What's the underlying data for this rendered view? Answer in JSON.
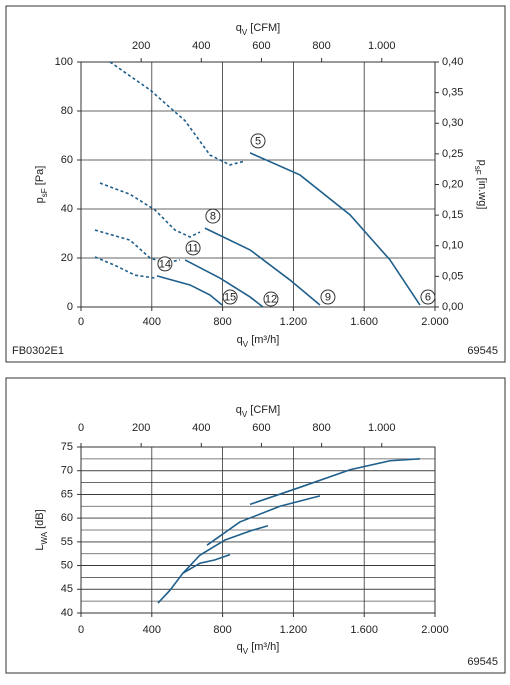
{
  "chart_data": [
    {
      "type": "line",
      "x_label": {
        "text": "q",
        "sub": "V",
        "unit": " [m³/h]"
      },
      "x2_label": {
        "text": "q",
        "sub": "V",
        "unit": " [CFM]"
      },
      "y_label": {
        "text": "p",
        "sub": "sF",
        "unit": " [Pa]"
      },
      "y2_label": {
        "text": "p",
        "sub": "sF",
        "unit": " [in.wg]"
      },
      "code_left": "FB0302E1",
      "code_right": "69545",
      "xlim": [
        0,
        2000
      ],
      "xticks": [
        0,
        400,
        800,
        {
          "value": 1200,
          "label": "1.200"
        },
        {
          "value": 1600,
          "label": "1.600"
        },
        {
          "value": 2000,
          "label": "2.000"
        }
      ],
      "x2lim": [
        0,
        1177
      ],
      "x2ticks": [
        200,
        400,
        600,
        800,
        {
          "value": 1000,
          "label": "1.000"
        }
      ],
      "ylim": [
        0,
        100
      ],
      "yticks": [
        0,
        20,
        40,
        60,
        80,
        100
      ],
      "y2lim": [
        0,
        0.4
      ],
      "y2ticks": [
        {
          "value": 0,
          "label": "0,00"
        },
        {
          "value": 0.05,
          "label": "0,05"
        },
        {
          "value": 0.1,
          "label": "0,10"
        },
        {
          "value": 0.15,
          "label": "0,15"
        },
        {
          "value": 0.2,
          "label": "0,20"
        },
        {
          "value": 0.25,
          "label": "0,25"
        },
        {
          "value": 0.3,
          "label": "0,30"
        },
        {
          "value": 0.35,
          "label": "0,35"
        },
        {
          "value": 0.4,
          "label": "0,40"
        }
      ],
      "grid": true,
      "series": [
        {
          "style": "dashed",
          "color": "#1f5f8b",
          "x": [
            164,
            390,
            588,
            729,
            842,
            927
          ],
          "values": [
            100,
            88.6,
            76,
            62,
            58,
            59.6
          ]
        },
        {
          "style": "solid",
          "color": "#1f5f8b",
          "x": [
            955,
            1237,
            1520,
            1746,
            1915
          ],
          "values": [
            62.9,
            53.9,
            37.6,
            19.2,
            0.8
          ]
        },
        {
          "style": "dashed",
          "color": "#1f5f8b",
          "x": [
            107,
            277,
            418,
            531,
            616,
            672
          ],
          "values": [
            50.6,
            46,
            39.6,
            31.4,
            28.6,
            30.6
          ]
        },
        {
          "style": "solid",
          "color": "#1f5f8b",
          "x": [
            700,
            955,
            1181,
            1350
          ],
          "values": [
            32.2,
            23.3,
            11,
            0.8
          ]
        },
        {
          "style": "dashed",
          "color": "#1f5f8b",
          "x": [
            79,
            277,
            390,
            475,
            559
          ],
          "values": [
            31.4,
            27.3,
            20,
            18,
            19.2
          ]
        },
        {
          "style": "solid",
          "color": "#1f5f8b",
          "x": [
            588,
            785,
            955,
            1028
          ],
          "values": [
            19.2,
            11.8,
            4.1,
            0
          ]
        },
        {
          "style": "dashed",
          "color": "#1f5f8b",
          "x": [
            79,
            192,
            305,
            418
          ],
          "values": [
            20.4,
            17,
            13,
            11.8
          ]
        },
        {
          "style": "solid",
          "color": "#1f5f8b",
          "x": [
            429,
            616,
            729,
            797
          ],
          "values": [
            12.7,
            9,
            4.9,
            0.8
          ]
        }
      ],
      "annotations": [
        {
          "text": "5",
          "series": 1,
          "at": "start"
        },
        {
          "text": "6",
          "series": 1,
          "at": "end"
        },
        {
          "text": "8",
          "series": 3,
          "at": "start"
        },
        {
          "text": "9",
          "series": 3,
          "at": "end"
        },
        {
          "text": "11",
          "series": 5,
          "at": "start"
        },
        {
          "text": "12",
          "series": 5,
          "at": "end"
        },
        {
          "text": "14",
          "series": 7,
          "at": "start"
        },
        {
          "text": "15",
          "series": 7,
          "at": "end"
        }
      ]
    },
    {
      "type": "line",
      "x_label": {
        "text": "q",
        "sub": "V",
        "unit": " [m³/h]"
      },
      "x2_label": {
        "text": "q",
        "sub": "V",
        "unit": " [CFM]"
      },
      "y_label": {
        "text": "L",
        "sub": "WA",
        "unit": " [dB]"
      },
      "code_right": "69545",
      "xlim": [
        0,
        2000
      ],
      "xticks": [
        0,
        400,
        800,
        {
          "value": 1200,
          "label": "1.200"
        },
        {
          "value": 1600,
          "label": "1.600"
        },
        {
          "value": 2000,
          "label": "2.000"
        }
      ],
      "x2lim": [
        0,
        1177
      ],
      "x2ticks": [
        0,
        200,
        400,
        600,
        800,
        {
          "value": 1000,
          "label": "1.000"
        }
      ],
      "ylim": [
        40,
        75
      ],
      "yticks": [
        40,
        45,
        50,
        55,
        60,
        65,
        70,
        75
      ],
      "grid": true,
      "minor_grid_step": 2.5,
      "series": [
        {
          "style": "solid",
          "color": "#1f5f8b",
          "x": [
            435,
            503,
            576,
            672,
            757,
            842
          ],
          "values": [
            42.1,
            44.8,
            48.4,
            50.5,
            51.2,
            52.3
          ]
        },
        {
          "style": "solid",
          "color": "#1f5f8b",
          "x": [
            576,
            672,
            814,
            955,
            1056
          ],
          "values": [
            48.4,
            52.2,
            55.4,
            57.3,
            58.4
          ]
        },
        {
          "style": "solid",
          "color": "#1f5f8b",
          "x": [
            712,
            898,
            1124,
            1350
          ],
          "values": [
            54.3,
            59.2,
            62.5,
            64.7
          ]
        },
        {
          "style": "solid",
          "color": "#1f5f8b",
          "x": [
            955,
            1237,
            1520,
            1746,
            1915
          ],
          "values": [
            62.9,
            66.5,
            70.2,
            72.1,
            72.5
          ]
        }
      ]
    }
  ]
}
